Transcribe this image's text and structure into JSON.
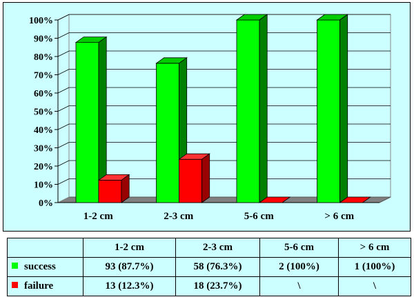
{
  "colors": {
    "background": "#ccffff",
    "success": "#00ff00",
    "failure": "#ff0000"
  },
  "chart_data": {
    "type": "bar",
    "style": "3d-clustered-column",
    "categories": [
      "1-2 cm",
      "2-3 cm",
      "5-6 cm",
      "> 6 cm"
    ],
    "series": [
      {
        "name": "success",
        "values": [
          87.7,
          76.3,
          100,
          100
        ],
        "color": "#00ff00"
      },
      {
        "name": "failure",
        "values": [
          12.3,
          23.7,
          0,
          0
        ],
        "color": "#ff0000"
      }
    ],
    "yticks": [
      "0%",
      "10%",
      "20%",
      "30%",
      "40%",
      "50%",
      "60%",
      "70%",
      "80%",
      "90%",
      "100%"
    ],
    "ylim": [
      0,
      100
    ],
    "grid": true,
    "legend": "table-below"
  },
  "table": {
    "headers": [
      "",
      "1-2 cm",
      "2-3 cm",
      "5-6 cm",
      "> 6 cm"
    ],
    "rows": [
      {
        "label": "success",
        "color": "#00ff00",
        "cells": [
          "93 (87.7%)",
          "58 (76.3%)",
          "2 (100%)",
          "1 (100%)"
        ]
      },
      {
        "label": "failure",
        "color": "#ff0000",
        "cells": [
          "13 (12.3%)",
          "18 (23.7%)",
          "\\",
          "\\"
        ]
      }
    ]
  }
}
